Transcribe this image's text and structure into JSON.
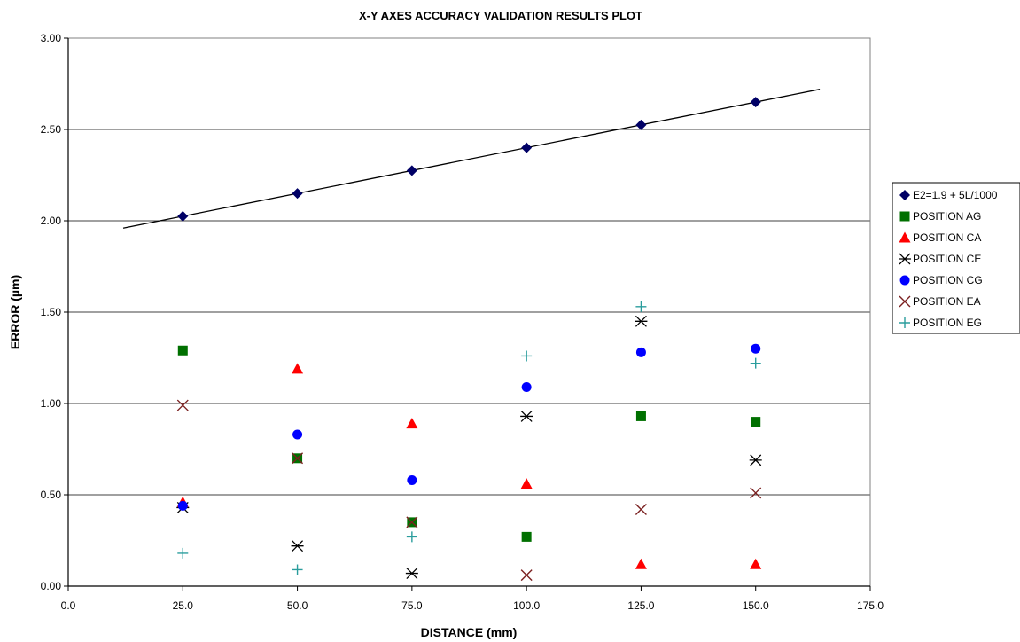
{
  "chart_data": {
    "type": "scatter",
    "title": "X-Y AXES ACCURACY VALIDATION RESULTS PLOT",
    "xlabel": "DISTANCE (mm)",
    "ylabel": "ERROR (µm)",
    "xlim": [
      0,
      175
    ],
    "ylim": [
      0,
      3
    ],
    "x_ticks": [
      "0.0",
      "25.0",
      "50.0",
      "75.0",
      "100.0",
      "125.0",
      "150.0",
      "175.0"
    ],
    "y_ticks": [
      "0.00",
      "0.50",
      "1.00",
      "1.50",
      "2.00",
      "2.50",
      "3.00"
    ],
    "grid": "horizontal",
    "legend_position": "right",
    "series": [
      {
        "name": "E2=1.9 + 5L/1000",
        "marker": "diamond",
        "color": "#000066",
        "x": [
          25,
          50,
          75,
          100,
          125,
          150
        ],
        "y": [
          2.025,
          2.15,
          2.275,
          2.4,
          2.525,
          2.65
        ],
        "trendline": {
          "x": [
            12,
            164
          ],
          "y": [
            1.96,
            2.72
          ]
        }
      },
      {
        "name": "POSITION AG",
        "marker": "square",
        "color": "#007000",
        "x": [
          25,
          50,
          75,
          100,
          125,
          150
        ],
        "y": [
          1.29,
          0.7,
          0.35,
          0.27,
          0.93,
          0.9
        ]
      },
      {
        "name": "POSITION CA",
        "marker": "triangle",
        "color": "#ff0000",
        "x": [
          25,
          50,
          75,
          100,
          125,
          150
        ],
        "y": [
          0.46,
          1.19,
          0.89,
          0.56,
          0.12,
          0.12
        ]
      },
      {
        "name": "POSITION CE",
        "marker": "asterisk",
        "color": "#000000",
        "x": [
          25,
          50,
          75,
          100,
          125,
          150
        ],
        "y": [
          0.43,
          0.22,
          0.07,
          0.93,
          1.45,
          0.69
        ]
      },
      {
        "name": "POSITION CG",
        "marker": "circle",
        "color": "#0000ff",
        "x": [
          25,
          50,
          75,
          100,
          125,
          150
        ],
        "y": [
          0.44,
          0.83,
          0.58,
          1.09,
          1.28,
          1.3
        ]
      },
      {
        "name": "POSITION EA",
        "marker": "x",
        "color": "#7a1f1f",
        "x": [
          25,
          50,
          75,
          100,
          125,
          150
        ],
        "y": [
          0.99,
          0.7,
          0.35,
          0.06,
          0.42,
          0.51
        ]
      },
      {
        "name": "POSITION EG",
        "marker": "plus",
        "color": "#2a9d9d",
        "x": [
          25,
          50,
          75,
          100,
          125,
          150
        ],
        "y": [
          0.18,
          0.09,
          0.27,
          1.26,
          1.53,
          1.22
        ]
      }
    ]
  }
}
